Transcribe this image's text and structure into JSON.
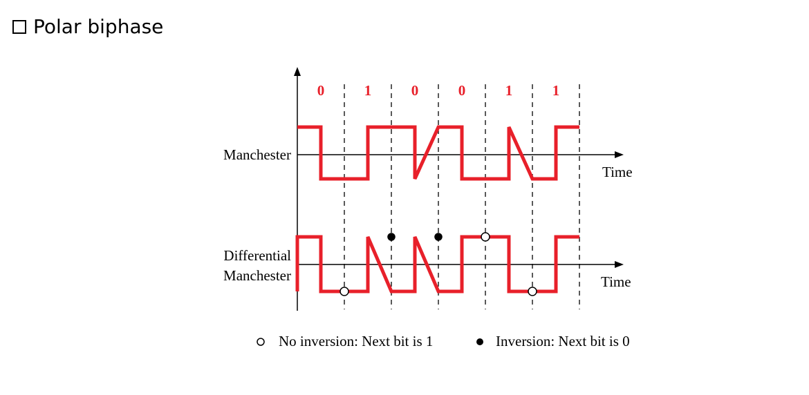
{
  "heading": {
    "text": "Polar biphase",
    "icon": "checkbox-icon"
  },
  "diagram": {
    "bits": [
      "0",
      "1",
      "0",
      "0",
      "1",
      "1"
    ],
    "signals": [
      {
        "label_lines": [
          "Manchester"
        ],
        "time_label": "Time"
      },
      {
        "label_lines": [
          "Differential",
          "Manchester"
        ],
        "time_label": "Time"
      }
    ],
    "legend": {
      "open_marker": "No inversion: Next bit is 1",
      "filled_marker": "Inversion: Next bit is 0"
    },
    "colors": {
      "signal": "#e8202a",
      "bit_label": "#e8202a",
      "axis": "#000000"
    }
  }
}
